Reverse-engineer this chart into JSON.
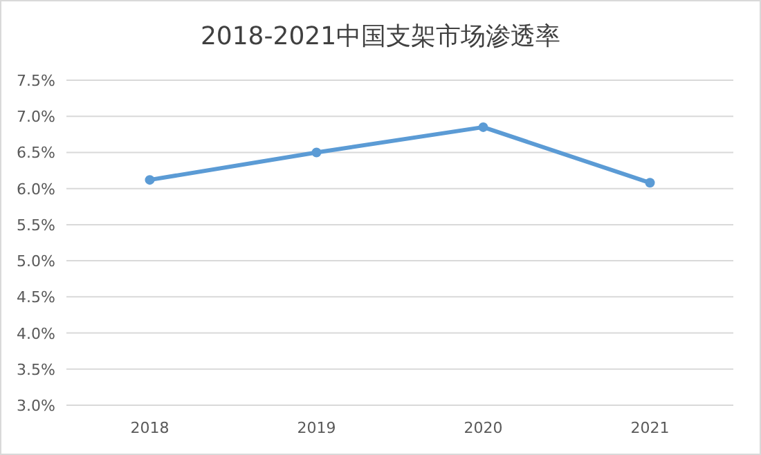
{
  "chart_data": {
    "type": "line",
    "title": "2018-2021中国支架市场渗透率",
    "categories": [
      "2018",
      "2019",
      "2020",
      "2021"
    ],
    "series": [
      {
        "color": "#5b9bd5",
        "values": [
          6.12,
          6.5,
          6.85,
          6.08
        ]
      }
    ],
    "ylim": [
      3,
      7.5
    ],
    "yticks": [
      {
        "value": 3,
        "label": "3.0%"
      },
      {
        "value": 3.5,
        "label": "3.5%"
      },
      {
        "value": 4,
        "label": "4.0%"
      },
      {
        "value": 4.5,
        "label": "4.5%"
      },
      {
        "value": 5,
        "label": "5.0%"
      },
      {
        "value": 5.5,
        "label": "5.5%"
      },
      {
        "value": 6,
        "label": "6.0%"
      },
      {
        "value": 6.5,
        "label": "6.5%"
      },
      {
        "value": 7,
        "label": "7.0%"
      },
      {
        "value": 7.5,
        "label": "7.5%"
      }
    ],
    "grid": "y",
    "marker": "circle",
    "line_style": "solid"
  }
}
